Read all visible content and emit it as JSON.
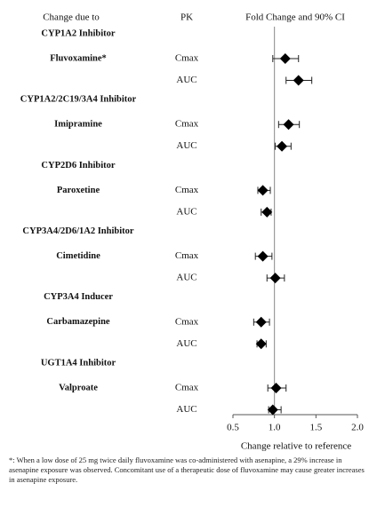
{
  "chart_data": {
    "type": "forest",
    "column_headers": [
      "Change due to",
      "PK",
      "Fold Change and 90% CI"
    ],
    "x_label": "Change relative to reference",
    "xlim": [
      0.5,
      2.0
    ],
    "xticks": [
      0.5,
      {
        "value": 1,
        "label": "1.0"
      },
      1.5,
      {
        "value": 2,
        "label": "2.0"
      }
    ],
    "reference_line": 1,
    "marker_color": "#000000",
    "groups": [
      {
        "name": "CYP1A2 Inhibitor",
        "drug": "Fluvoxamine*",
        "rows": [
          {
            "pk": "Cmax",
            "value": 1.13,
            "lo": 0.98,
            "hi": 1.29
          },
          {
            "pk": "AUC",
            "value": 1.29,
            "lo": 1.14,
            "hi": 1.45
          }
        ]
      },
      {
        "name": "CYP1A2/2C19/3A4 Inhibitor",
        "drug": "Imipramine",
        "rows": [
          {
            "pk": "Cmax",
            "value": 1.17,
            "lo": 1.05,
            "hi": 1.3
          },
          {
            "pk": "AUC",
            "value": 1.09,
            "lo": 1.01,
            "hi": 1.2
          }
        ]
      },
      {
        "name": "CYP2D6 Inhibitor",
        "drug": "Paroxetine",
        "rows": [
          {
            "pk": "Cmax",
            "value": 0.86,
            "lo": 0.8,
            "hi": 0.95
          },
          {
            "pk": "AUC",
            "value": 0.91,
            "lo": 0.84,
            "hi": 0.96
          }
        ]
      },
      {
        "name": "CYP3A4/2D6/1A2 Inhibitor",
        "drug": "Cimetidine",
        "rows": [
          {
            "pk": "Cmax",
            "value": 0.86,
            "lo": 0.77,
            "hi": 0.97
          },
          {
            "pk": "AUC",
            "value": 1.01,
            "lo": 0.91,
            "hi": 1.12
          }
        ]
      },
      {
        "name": "CYP3A4 Inducer",
        "drug": "Carbamazepine",
        "rows": [
          {
            "pk": "Cmax",
            "value": 0.84,
            "lo": 0.75,
            "hi": 0.94
          },
          {
            "pk": "AUC",
            "value": 0.84,
            "lo": 0.79,
            "hi": 0.9
          }
        ]
      },
      {
        "name": "UGT1A4 Inhibitor",
        "drug": "Valproate",
        "rows": [
          {
            "pk": "Cmax",
            "value": 1.02,
            "lo": 0.92,
            "hi": 1.14
          },
          {
            "pk": "AUC",
            "value": 0.98,
            "lo": 0.93,
            "hi": 1.08
          }
        ]
      }
    ],
    "footnote": "*: When a low dose of 25 mg twice daily fluvoxamine was co-administered with asenapine, a 29% increase in asenapine exposure was observed. Concomitant use of a therapeutic dose of fluvoxamine may cause greater increases in asenapine exposure."
  }
}
